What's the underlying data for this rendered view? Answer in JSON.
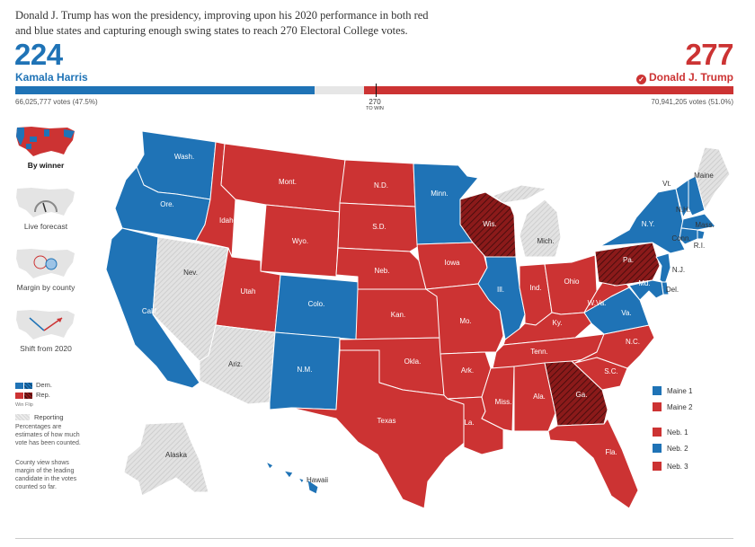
{
  "headline": "Donald J. Trump has won the presidency, improving upon his 2020 performance in both red and blue states and capturing enough swing states to reach 270 Electoral College votes.",
  "democrat": {
    "electoral_votes": "224",
    "name": "Kamala Harris",
    "popular_votes": "66,025,777 votes (47.5%)",
    "color": "#1f73b6"
  },
  "republican": {
    "electoral_votes": "277",
    "name": "Donald J. Trump",
    "popular_votes": "70,941,205 votes (51.0%)",
    "color": "#cc3333",
    "winner_icon": "check-circle-icon"
  },
  "bar": {
    "total_electoral_votes": 538,
    "to_win_value": "270",
    "to_win_label": "TO WIN"
  },
  "views": [
    {
      "caption": "By winner",
      "icon": "winner-map-thumbnail",
      "active": true
    },
    {
      "caption": "Live forecast",
      "icon": "forecast-gauge-thumbnail",
      "active": false
    },
    {
      "caption": "Margin by county",
      "icon": "county-bubble-thumbnail",
      "active": false
    },
    {
      "caption": "Shift from 2020",
      "icon": "shift-arrows-thumbnail",
      "active": false
    }
  ],
  "legend": {
    "dem_label": "Dem.",
    "rep_label": "Rep.",
    "win_label": "Win",
    "flip_label": "Flip",
    "reporting_label": "Reporting",
    "note_percentages": "Percentages are estimates of how much vote has been counted.",
    "note_county": "County view shows margin of the leading candidate in the votes counted so far."
  },
  "districts": [
    {
      "label": "Maine 1",
      "winner": "dem"
    },
    {
      "label": "Maine 2",
      "winner": "rep"
    },
    {
      "label": "Neb. 1",
      "winner": "rep"
    },
    {
      "label": "Neb. 2",
      "winner": "dem"
    },
    {
      "label": "Neb. 3",
      "winner": "rep"
    }
  ],
  "colors": {
    "dem": "#1f73b6",
    "rep": "#cc3333",
    "flip": "#8b1a1a",
    "reporting": "#dddddd"
  },
  "states": [
    {
      "label": "Wash.",
      "winner": "dem"
    },
    {
      "label": "Ore.",
      "winner": "dem"
    },
    {
      "label": "Calif.",
      "winner": "dem"
    },
    {
      "label": "Nev.",
      "winner": "reporting"
    },
    {
      "label": "Idaho",
      "winner": "rep"
    },
    {
      "label": "Mont.",
      "winner": "rep"
    },
    {
      "label": "Wyo.",
      "winner": "rep"
    },
    {
      "label": "Utah",
      "winner": "rep"
    },
    {
      "label": "Colo.",
      "winner": "dem"
    },
    {
      "label": "Ariz.",
      "winner": "reporting"
    },
    {
      "label": "N.M.",
      "winner": "dem"
    },
    {
      "label": "N.D.",
      "winner": "rep"
    },
    {
      "label": "S.D.",
      "winner": "rep"
    },
    {
      "label": "Neb.",
      "winner": "rep"
    },
    {
      "label": "Kan.",
      "winner": "rep"
    },
    {
      "label": "Okla.",
      "winner": "rep"
    },
    {
      "label": "Texas",
      "winner": "rep"
    },
    {
      "label": "Minn.",
      "winner": "dem"
    },
    {
      "label": "Iowa",
      "winner": "rep"
    },
    {
      "label": "Mo.",
      "winner": "rep"
    },
    {
      "label": "Ark.",
      "winner": "rep"
    },
    {
      "label": "La.",
      "winner": "rep"
    },
    {
      "label": "Wis.",
      "winner": "rep-flip"
    },
    {
      "label": "Ill.",
      "winner": "dem"
    },
    {
      "label": "Mich.",
      "winner": "reporting"
    },
    {
      "label": "Ind.",
      "winner": "rep"
    },
    {
      "label": "Ohio",
      "winner": "rep"
    },
    {
      "label": "Ky.",
      "winner": "rep"
    },
    {
      "label": "Tenn.",
      "winner": "rep"
    },
    {
      "label": "Miss.",
      "winner": "rep"
    },
    {
      "label": "Ala.",
      "winner": "rep"
    },
    {
      "label": "Ga.",
      "winner": "rep-flip"
    },
    {
      "label": "Fla.",
      "winner": "rep"
    },
    {
      "label": "S.C.",
      "winner": "rep"
    },
    {
      "label": "N.C.",
      "winner": "rep"
    },
    {
      "label": "Va.",
      "winner": "dem"
    },
    {
      "label": "W.Va.",
      "winner": "rep"
    },
    {
      "label": "Pa.",
      "winner": "rep-flip"
    },
    {
      "label": "N.Y.",
      "winner": "dem"
    },
    {
      "label": "Vt.",
      "winner": "dem"
    },
    {
      "label": "N.H.",
      "winner": "dem"
    },
    {
      "label": "Maine",
      "winner": "reporting"
    },
    {
      "label": "Mass.",
      "winner": "dem"
    },
    {
      "label": "R.I.",
      "winner": "dem"
    },
    {
      "label": "Conn.",
      "winner": "dem"
    },
    {
      "label": "N.J.",
      "winner": "dem"
    },
    {
      "label": "Del.",
      "winner": "dem"
    },
    {
      "label": "Md.",
      "winner": "dem"
    },
    {
      "label": "Alaska",
      "winner": "reporting"
    },
    {
      "label": "Hawaii",
      "winner": "dem"
    }
  ]
}
